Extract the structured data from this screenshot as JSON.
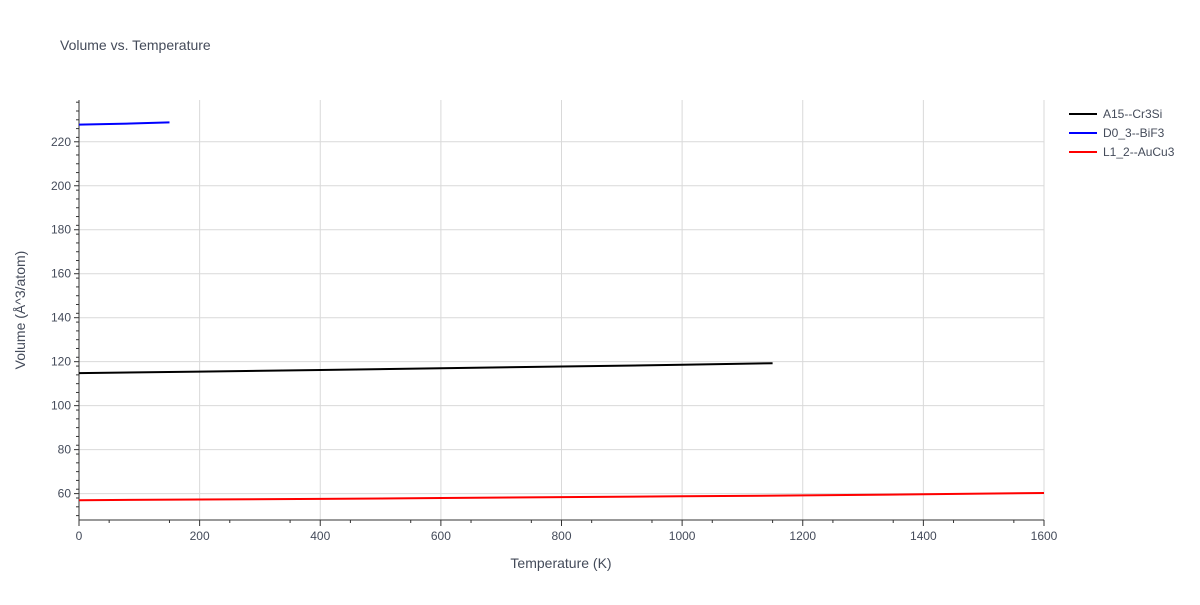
{
  "chart_data": {
    "type": "line",
    "title": "Volume vs. Temperature",
    "xlabel": "Temperature (K)",
    "ylabel": "Volume (Å^3/atom)",
    "xlim": [
      0,
      1600
    ],
    "ylim": [
      48,
      239
    ],
    "x_ticks": [
      0,
      200,
      400,
      600,
      800,
      1000,
      1200,
      1400,
      1600
    ],
    "y_ticks": [
      60,
      80,
      100,
      120,
      140,
      160,
      180,
      200,
      220
    ],
    "grid": true,
    "legend_position": "top-right, outside plot",
    "series": [
      {
        "name": "A15--Cr3Si",
        "color": "#000000",
        "x": [
          0,
          200,
          400,
          600,
          800,
          1000,
          1150
        ],
        "y": [
          114.8,
          115.5,
          116.2,
          117.0,
          117.8,
          118.6,
          119.3
        ]
      },
      {
        "name": "D0_3--BiF3",
        "color": "#0000ff",
        "x": [
          0,
          50,
          100,
          150
        ],
        "y": [
          227.8,
          228.1,
          228.4,
          228.8
        ]
      },
      {
        "name": "L1_2--AuCu3",
        "color": "#ff0000",
        "x": [
          0,
          200,
          400,
          600,
          800,
          1000,
          1200,
          1400,
          1600
        ],
        "y": [
          57.0,
          57.3,
          57.6,
          58.0,
          58.4,
          58.8,
          59.2,
          59.7,
          60.3
        ]
      }
    ]
  }
}
